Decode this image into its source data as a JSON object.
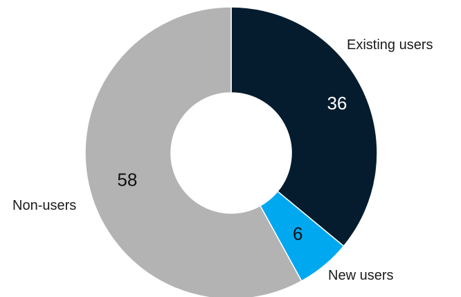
{
  "chart_data": {
    "type": "pie",
    "variant": "donut",
    "title": "",
    "categories": [
      "Existing users",
      "New users",
      "Non-users"
    ],
    "values": [
      36,
      6,
      58
    ],
    "value_labels": [
      "36",
      "6",
      "58"
    ],
    "colors": [
      "#041c2e",
      "#00a8f0",
      "#b3b3b3"
    ],
    "value_label_colors": [
      "#ffffff",
      "#111111",
      "#111111"
    ],
    "start": "12 o'clock",
    "direction": "clockwise",
    "legend": "none (direct labels)"
  }
}
